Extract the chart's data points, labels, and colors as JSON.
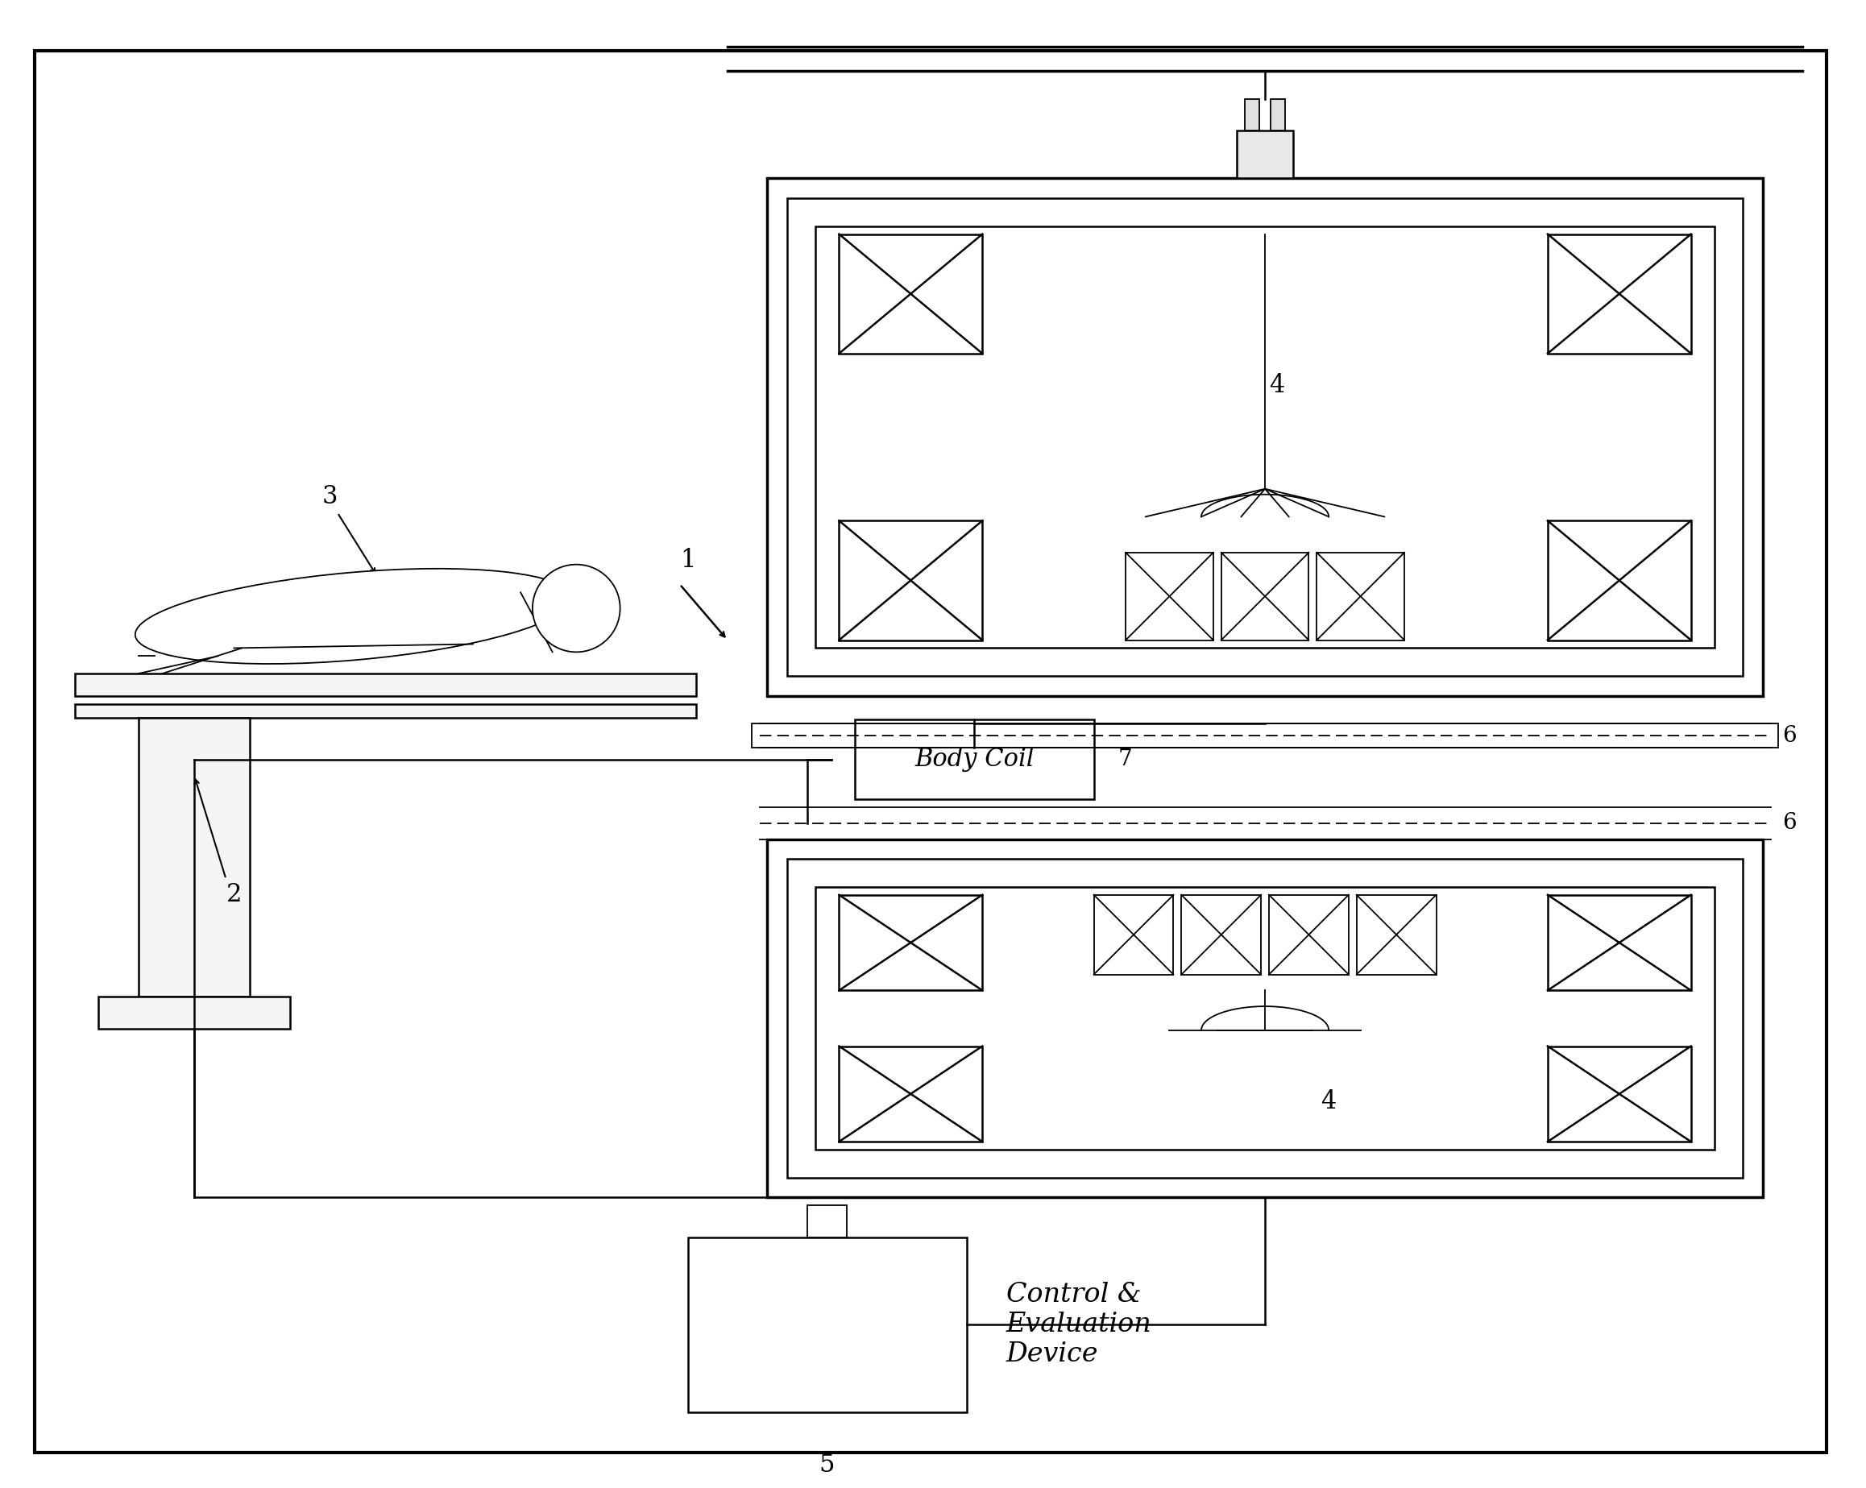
{
  "bg_color": "#ffffff",
  "line_color": "#000000",
  "fig_width": 23.16,
  "fig_height": 18.47,
  "body_coil_text": "Body Coil",
  "control_text": "Control &\nEvaluation\nDevice",
  "label_1": "1",
  "label_2": "2",
  "label_3": "3",
  "label_4": "4",
  "label_5": "5",
  "label_6": "6",
  "label_7": "7"
}
